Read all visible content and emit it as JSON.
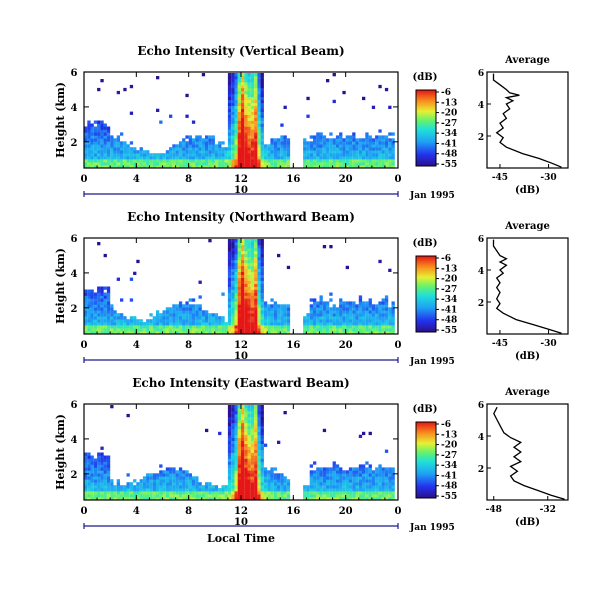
{
  "chart_data": [
    {
      "type": "heatmap",
      "title": "Echo Intensity (Vertical Beam)",
      "ylabel": "Height (km)",
      "xticks": [
        "0",
        "4",
        "8",
        "12",
        "16",
        "20",
        "0"
      ],
      "yticks": [
        "2",
        "4",
        "6"
      ],
      "xlim": [
        0,
        24
      ],
      "ylim": [
        0.5,
        6
      ],
      "date_marker": "10",
      "date_label": "Jan 1995",
      "colorbar": {
        "label": "(dB)",
        "ticks": [
          "-6",
          "-13",
          "-20",
          "-27",
          "-34",
          "-41",
          "-48",
          "-55"
        ]
      },
      "profile": {
        "title": "Average",
        "xlabel": "(dB)",
        "xticks": [
          "-45",
          "-30"
        ],
        "yticks": [
          "2",
          "4",
          "6"
        ],
        "xlim": [
          -49,
          -24
        ],
        "ylim": [
          0,
          6
        ],
        "points": [
          [
            -26,
            0.05
          ],
          [
            -29,
            0.3
          ],
          [
            -33,
            0.6
          ],
          [
            -38,
            0.9
          ],
          [
            -43,
            1.3
          ],
          [
            -45,
            1.6
          ],
          [
            -44,
            1.9
          ],
          [
            -46,
            2.2
          ],
          [
            -44,
            2.5
          ],
          [
            -45,
            2.8
          ],
          [
            -43,
            3.1
          ],
          [
            -44,
            3.4
          ],
          [
            -42,
            3.7
          ],
          [
            -43,
            4.0
          ],
          [
            -41,
            4.2
          ],
          [
            -43,
            4.4
          ],
          [
            -39,
            4.55
          ],
          [
            -42,
            4.7
          ],
          [
            -43,
            4.9
          ],
          [
            -45,
            5.2
          ],
          [
            -47,
            5.5
          ],
          [
            -47,
            5.9
          ]
        ]
      }
    },
    {
      "type": "heatmap",
      "title": "Echo Intensity (Northward Beam)",
      "ylabel": "Height (km)",
      "xticks": [
        "0",
        "4",
        "8",
        "12",
        "16",
        "20",
        "0"
      ],
      "yticks": [
        "2",
        "4",
        "6"
      ],
      "xlim": [
        0,
        24
      ],
      "ylim": [
        0.5,
        6
      ],
      "date_marker": "10",
      "date_label": "Jan 1995",
      "colorbar": {
        "label": "(dB)",
        "ticks": [
          "-6",
          "-13",
          "-20",
          "-27",
          "-34",
          "-41",
          "-48",
          "-55"
        ]
      },
      "profile": {
        "title": "Average",
        "xlabel": "(dB)",
        "xticks": [
          "-45",
          "-30"
        ],
        "yticks": [
          "2",
          "4",
          "6"
        ],
        "xlim": [
          -49,
          -24
        ],
        "ylim": [
          0,
          6
        ],
        "points": [
          [
            -26,
            0.05
          ],
          [
            -30,
            0.3
          ],
          [
            -35,
            0.6
          ],
          [
            -40,
            0.9
          ],
          [
            -44,
            1.3
          ],
          [
            -46,
            1.6
          ],
          [
            -45,
            1.9
          ],
          [
            -46,
            2.2
          ],
          [
            -45,
            2.6
          ],
          [
            -46,
            2.9
          ],
          [
            -45,
            3.2
          ],
          [
            -46,
            3.5
          ],
          [
            -44,
            3.8
          ],
          [
            -45,
            4.0
          ],
          [
            -43,
            4.3
          ],
          [
            -45,
            4.5
          ],
          [
            -43,
            4.7
          ],
          [
            -45,
            4.9
          ],
          [
            -46,
            5.2
          ],
          [
            -47,
            5.5
          ],
          [
            -47,
            5.9
          ]
        ]
      }
    },
    {
      "type": "heatmap",
      "title": "Echo Intensity (Eastward Beam)",
      "ylabel": "Height (km)",
      "xlabel": "Local Time",
      "xticks": [
        "0",
        "4",
        "8",
        "12",
        "16",
        "20",
        "0"
      ],
      "yticks": [
        "2",
        "4",
        "6"
      ],
      "xlim": [
        0,
        24
      ],
      "ylim": [
        0.5,
        6
      ],
      "date_marker": "10",
      "date_label": "Jan 1995",
      "colorbar": {
        "label": "(dB)",
        "ticks": [
          "-6",
          "-13",
          "-20",
          "-27",
          "-34",
          "-41",
          "-48",
          "-55"
        ]
      },
      "profile": {
        "title": "Average",
        "xlabel": "(dB)",
        "xticks": [
          "-48",
          "-32"
        ],
        "yticks": [
          "2",
          "4",
          "6"
        ],
        "xlim": [
          -50,
          -26
        ],
        "ylim": [
          0,
          6
        ],
        "points": [
          [
            -27,
            0.05
          ],
          [
            -31,
            0.3
          ],
          [
            -35,
            0.6
          ],
          [
            -39,
            0.9
          ],
          [
            -42,
            1.2
          ],
          [
            -43,
            1.5
          ],
          [
            -41,
            1.8
          ],
          [
            -43,
            2.1
          ],
          [
            -40,
            2.4
          ],
          [
            -42,
            2.7
          ],
          [
            -40,
            3.0
          ],
          [
            -42,
            3.3
          ],
          [
            -40,
            3.6
          ],
          [
            -43,
            3.9
          ],
          [
            -45,
            4.2
          ],
          [
            -46,
            4.6
          ],
          [
            -47,
            5.0
          ],
          [
            -48,
            5.4
          ],
          [
            -47,
            5.8
          ]
        ]
      }
    }
  ]
}
